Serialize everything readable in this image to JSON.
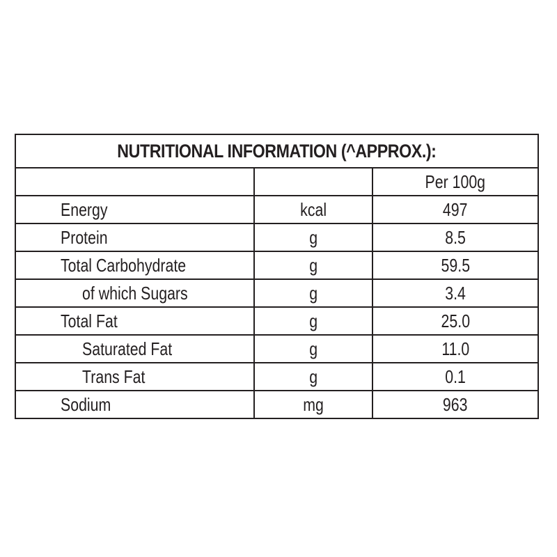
{
  "table": {
    "title": "NUTRITIONAL INFORMATION (^APPROX.):",
    "header": {
      "name": "",
      "unit": "",
      "value": "Per 100g"
    },
    "rows": [
      {
        "name": "Energy",
        "unit": "kcal",
        "value": "497",
        "indent": false
      },
      {
        "name": "Protein",
        "unit": "g",
        "value": "8.5",
        "indent": false
      },
      {
        "name": "Total Carbohydrate",
        "unit": "g",
        "value": "59.5",
        "indent": false
      },
      {
        "name": "of which Sugars",
        "unit": "g",
        "value": "3.4",
        "indent": true
      },
      {
        "name": "Total Fat",
        "unit": "g",
        "value": "25.0",
        "indent": false
      },
      {
        "name": "Saturated Fat",
        "unit": "g",
        "value": "11.0",
        "indent": true
      },
      {
        "name": "Trans Fat",
        "unit": "g",
        "value": "0.1",
        "indent": true
      },
      {
        "name": "Sodium",
        "unit": "mg",
        "value": "963",
        "indent": false
      }
    ]
  }
}
